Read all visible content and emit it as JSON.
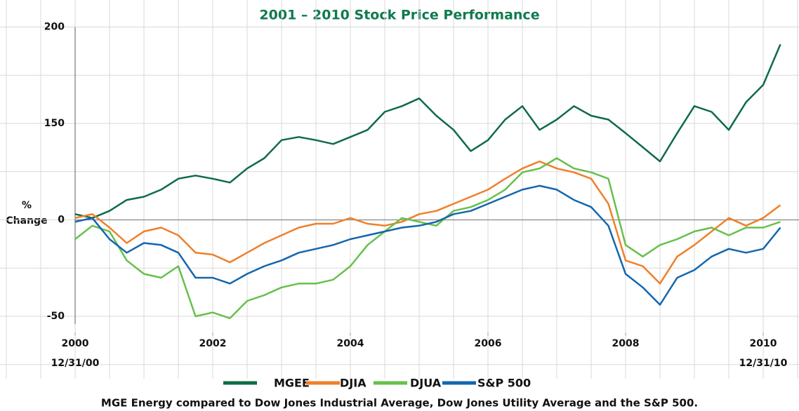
{
  "chart_data": {
    "type": "line",
    "title": "2001 – 2010 Stock Price Performance",
    "ylabel_lines": [
      "%",
      "Change"
    ],
    "caption": "MGE Energy compared to Dow Jones Industrial Average, Dow Jones Utility Average and the S&P 500.",
    "start_label": "12/31/00",
    "end_label": "12/31/10",
    "xlim": [
      2000,
      2010.5
    ],
    "xticks": [
      2000,
      2002,
      2004,
      2006,
      2008,
      2010
    ],
    "ylim": [
      -60,
      200
    ],
    "yticks": [
      -50,
      0,
      150,
      200
    ],
    "grid": true,
    "legend": "bottom",
    "x": [
      2000,
      2000.25,
      2000.5,
      2000.75,
      2001,
      2001.25,
      2001.5,
      2001.75,
      2002,
      2002.25,
      2002.5,
      2002.75,
      2003,
      2003.25,
      2003.5,
      2003.75,
      2004,
      2004.25,
      2004.5,
      2004.75,
      2005,
      2005.25,
      2005.5,
      2005.75,
      2006,
      2006.25,
      2006.5,
      2006.75,
      2007,
      2007.25,
      2007.5,
      2007.75,
      2008,
      2008.25,
      2008.5,
      2008.75,
      2009,
      2009.25,
      2009.5,
      2009.75,
      2010,
      2010.25
    ],
    "series": [
      {
        "name": "MGEE",
        "color": "#0f6b47",
        "values": [
          9,
          3,
          14,
          31,
          36,
          47,
          64,
          69,
          64,
          58,
          80,
          96,
          124,
          129,
          124,
          118,
          129,
          140,
          156,
          159,
          163,
          154,
          140,
          107,
          124,
          152,
          159,
          140,
          152,
          159,
          154,
          152,
          135,
          113,
          91,
          135,
          159,
          156,
          140,
          161,
          170,
          191
        ]
      },
      {
        "name": "DJIA",
        "color": "#f07f2a",
        "values": [
          3,
          9,
          -4,
          -12,
          -6,
          -4,
          -8,
          -17,
          -18,
          -22,
          -17,
          -12,
          -8,
          -4,
          -2,
          -2,
          3,
          -2,
          -3,
          -1,
          9,
          14,
          25,
          36,
          47,
          64,
          80,
          91,
          80,
          74,
          64,
          25,
          -21,
          -24,
          -33,
          -19,
          -13,
          -6,
          3,
          -3,
          3,
          23
        ]
      },
      {
        "name": "DJUA",
        "color": "#66c04b",
        "values": [
          -10,
          -3,
          -6,
          -21,
          -28,
          -30,
          -24,
          -50,
          -48,
          -51,
          -42,
          -39,
          -35,
          -33,
          -33,
          -31,
          -24,
          -13,
          -6,
          3,
          -1,
          -3,
          14,
          20,
          31,
          47,
          74,
          80,
          96,
          80,
          74,
          64,
          -13,
          -19,
          -13,
          -10,
          -6,
          -4,
          -8,
          -4,
          -4,
          -1
        ]
      },
      {
        "name": "S&P 500",
        "color": "#1466ad",
        "values": [
          -1,
          3,
          -10,
          -17,
          -12,
          -13,
          -17,
          -30,
          -30,
          -33,
          -28,
          -24,
          -21,
          -17,
          -15,
          -13,
          -10,
          -8,
          -6,
          -4,
          -3,
          -1,
          9,
          14,
          25,
          36,
          47,
          53,
          47,
          31,
          20,
          -3,
          -28,
          -35,
          -44,
          -30,
          -26,
          -19,
          -15,
          -17,
          -15,
          -4
        ]
      }
    ]
  }
}
